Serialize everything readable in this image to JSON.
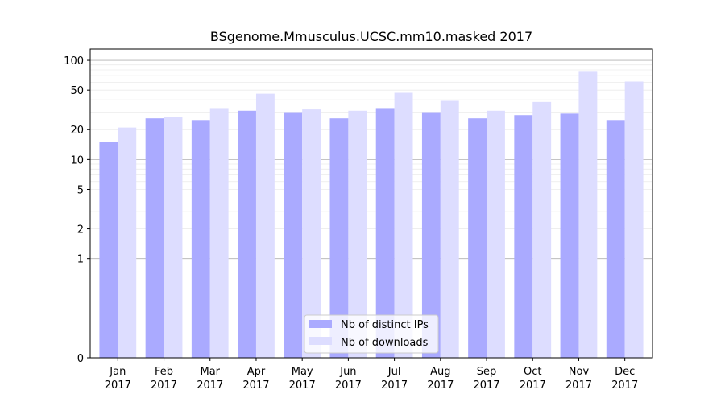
{
  "chart_data": {
    "type": "bar",
    "title": "BSgenome.Mmusculus.UCSC.mm10.masked 2017",
    "xlabel": "",
    "ylabel": "",
    "yscale": "symlog",
    "ylim": [
      0,
      130
    ],
    "yticks": [
      0,
      1,
      2,
      5,
      10,
      20,
      50,
      100
    ],
    "ytick_labels": [
      "0",
      "1",
      "2",
      "5",
      "10",
      "20",
      "50",
      "100"
    ],
    "categories": [
      [
        "Jan",
        "2017"
      ],
      [
        "Feb",
        "2017"
      ],
      [
        "Mar",
        "2017"
      ],
      [
        "Apr",
        "2017"
      ],
      [
        "May",
        "2017"
      ],
      [
        "Jun",
        "2017"
      ],
      [
        "Jul",
        "2017"
      ],
      [
        "Aug",
        "2017"
      ],
      [
        "Sep",
        "2017"
      ],
      [
        "Oct",
        "2017"
      ],
      [
        "Nov",
        "2017"
      ],
      [
        "Dec",
        "2017"
      ]
    ],
    "series": [
      {
        "name": "Nb of distinct IPs",
        "color": "#aaaaff",
        "values": [
          15,
          26,
          25,
          31,
          30,
          26,
          33,
          30,
          26,
          28,
          29,
          25
        ]
      },
      {
        "name": "Nb of downloads",
        "color": "#ddddff",
        "values": [
          21,
          27,
          33,
          46,
          32,
          31,
          47,
          39,
          31,
          38,
          78,
          61
        ]
      }
    ],
    "grid": true,
    "legend_position": "lower center"
  }
}
